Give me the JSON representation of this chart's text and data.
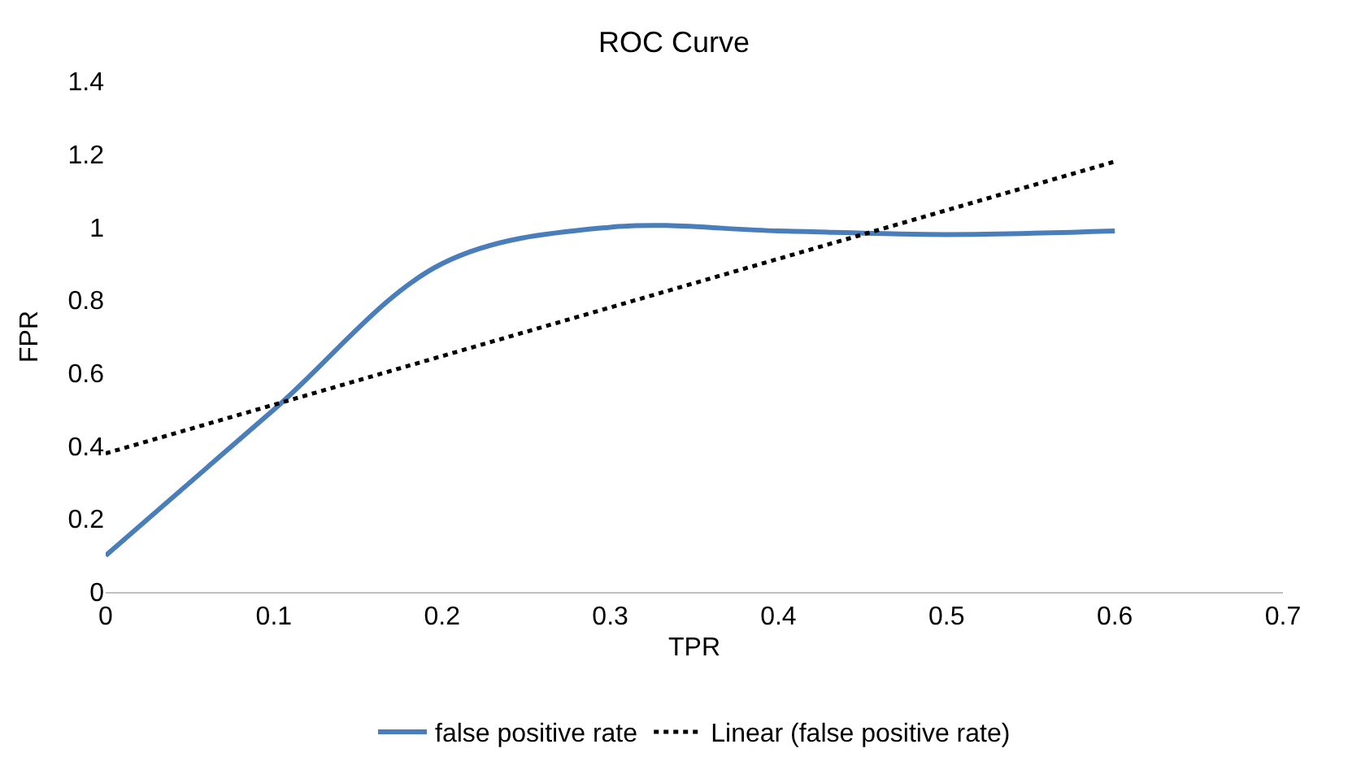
{
  "chart_data": {
    "type": "line",
    "title": "ROC Curve",
    "xlabel": "TPR",
    "ylabel": "FPR",
    "x": [
      0,
      0.1,
      0.2,
      0.3,
      0.4,
      0.5,
      0.6
    ],
    "series": [
      {
        "name": "false positive rate",
        "color": "#4a7ebb",
        "values": [
          0.1,
          0.5,
          0.9,
          1.0,
          0.99,
          0.98,
          0.99
        ],
        "line_style": "solid"
      },
      {
        "name": "Linear (false positive rate)",
        "color": "#000000",
        "x": [
          0,
          0.6
        ],
        "values": [
          0.38,
          1.18
        ],
        "line_style": "dotted"
      }
    ],
    "xlim": [
      0,
      0.7
    ],
    "xticks": [
      0,
      0.1,
      0.2,
      0.3,
      0.4,
      0.5,
      0.6,
      0.7
    ],
    "ylim": [
      0,
      1.4
    ],
    "yticks": [
      0,
      0.2,
      0.4,
      0.6,
      0.8,
      1,
      1.2,
      1.4
    ],
    "grid": false,
    "legend": "bottom",
    "marker": "none"
  }
}
